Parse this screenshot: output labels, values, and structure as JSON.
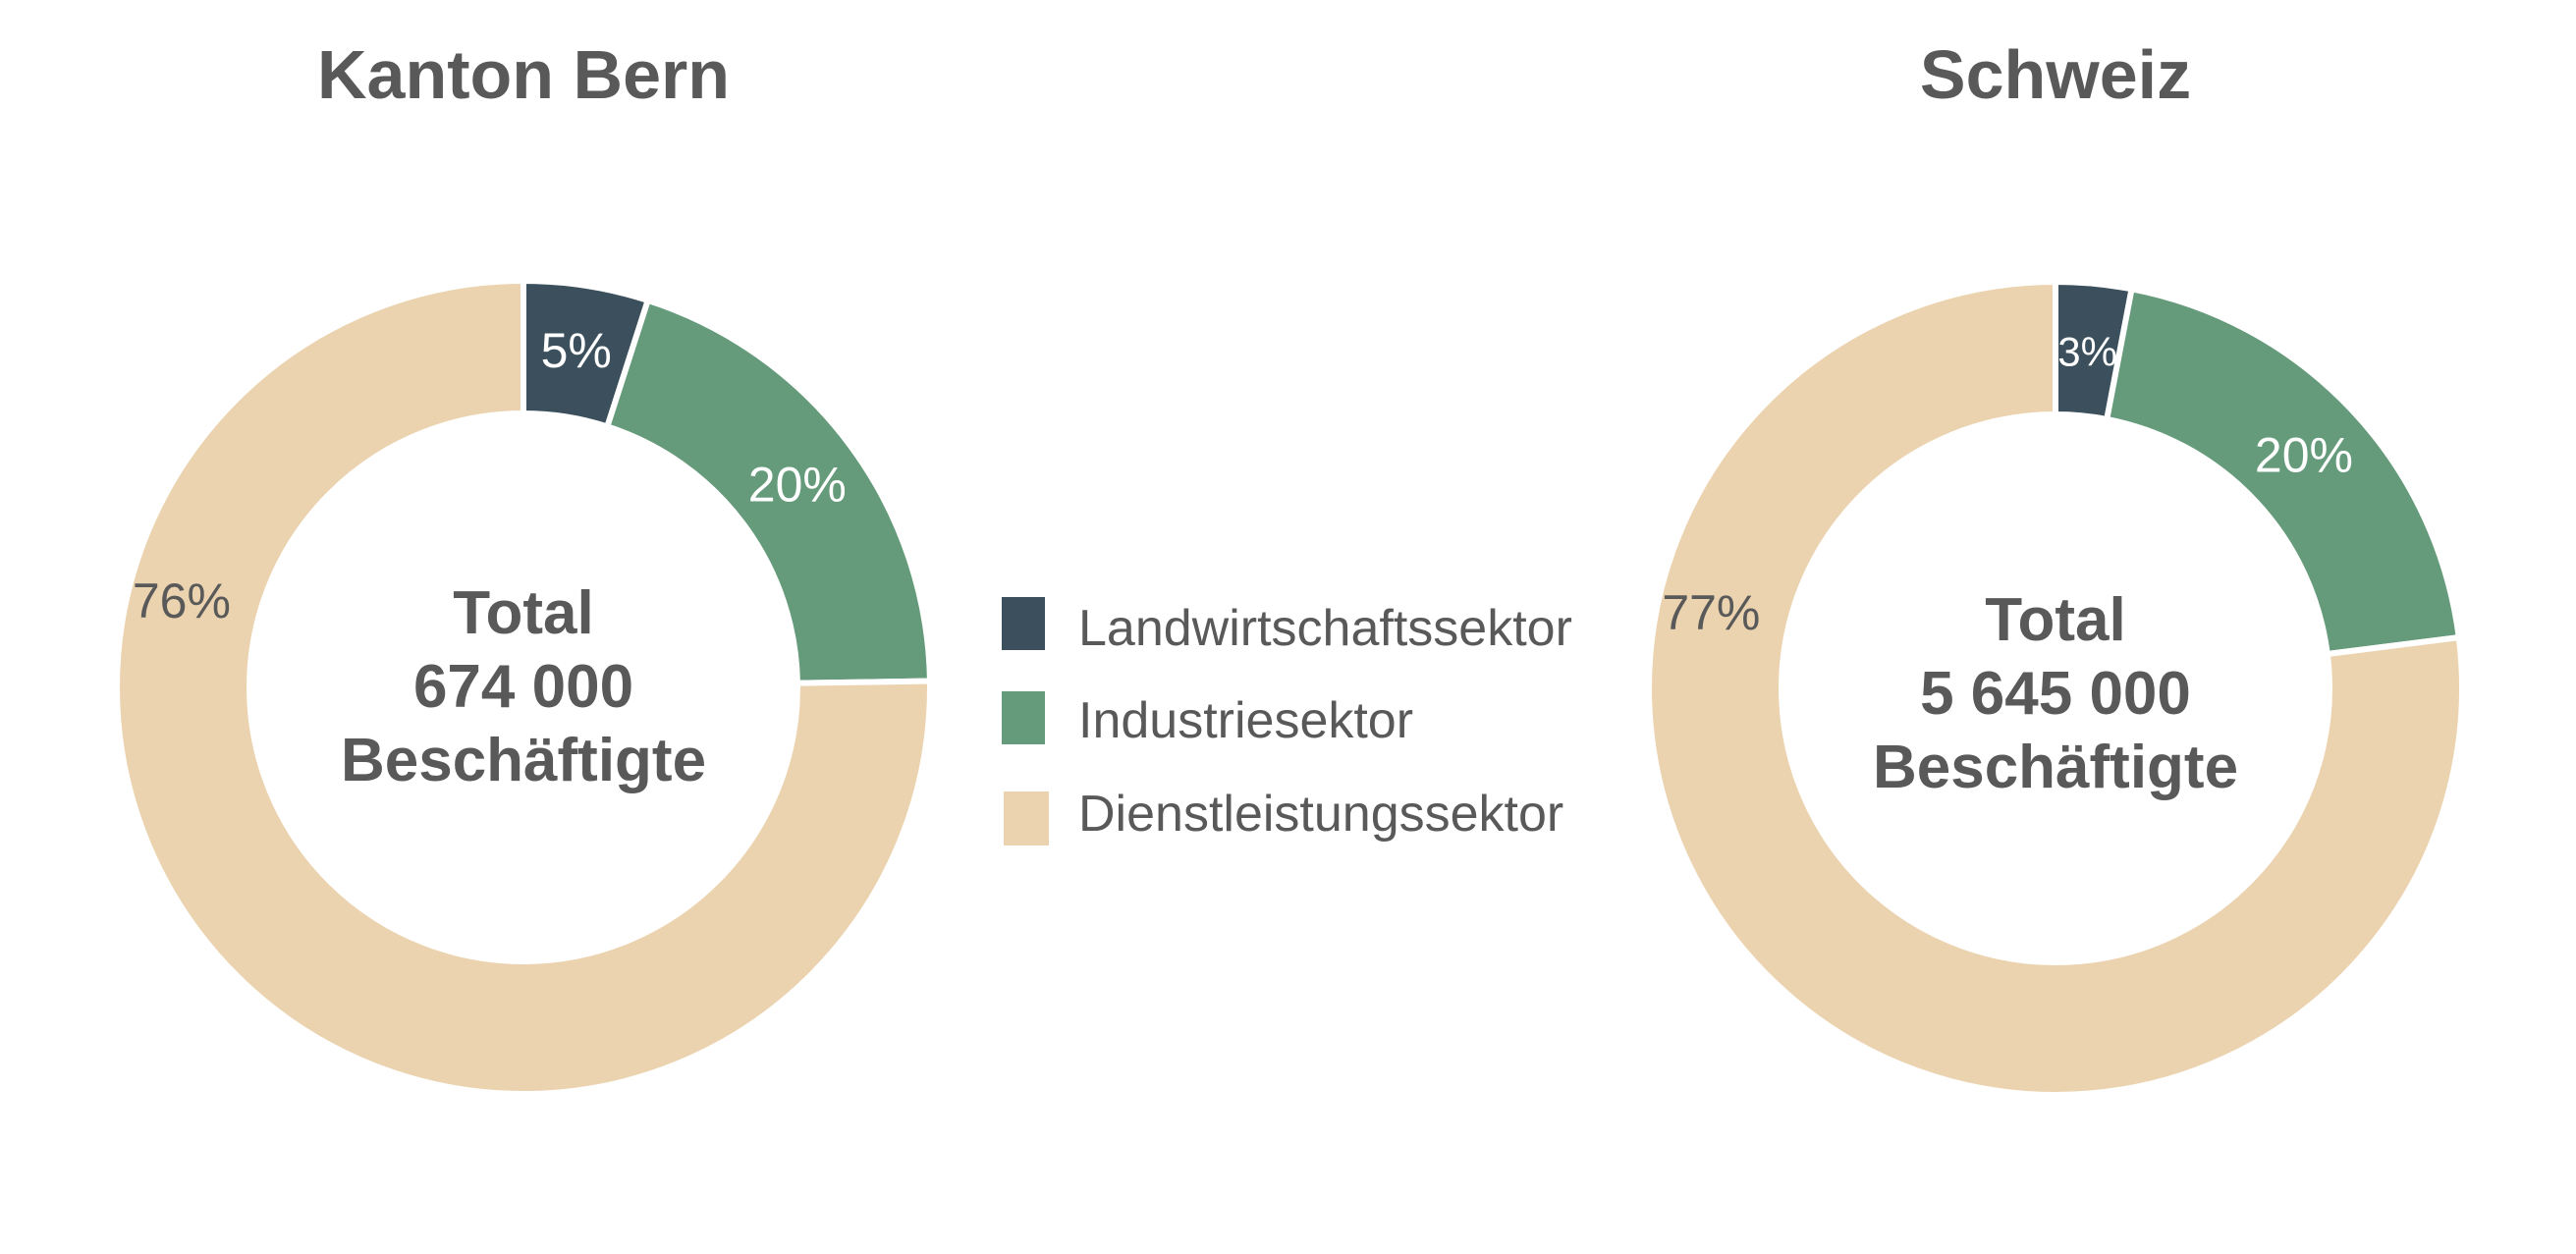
{
  "chart_data": [
    {
      "type": "pie",
      "title": "Kanton Bern",
      "center_text": [
        "Total",
        "674 000",
        "Beschäftigte"
      ],
      "categories": [
        "Landwirtschaftssektor",
        "Industriesektor",
        "Dienstleistungssektor"
      ],
      "values": [
        5,
        20,
        76
      ],
      "value_labels": [
        "5%",
        "20%",
        "76%"
      ]
    },
    {
      "type": "pie",
      "title": "Schweiz",
      "center_text": [
        "Total",
        "5 645 000",
        "Beschäftigte"
      ],
      "categories": [
        "Landwirtschaftssektor",
        "Industriesektor",
        "Dienstleistungssektor"
      ],
      "values": [
        3,
        20,
        77
      ],
      "value_labels": [
        "3%",
        "20%",
        "77%"
      ]
    }
  ],
  "legend": {
    "placement": "center",
    "items": [
      {
        "label": "Landwirtschaftssektor",
        "color": "#3b4f5c"
      },
      {
        "label": "Industriesektor",
        "color": "#659b7b"
      },
      {
        "label": "Dienstleistungssektor",
        "color": "#ebd3af"
      }
    ]
  },
  "colors": {
    "segments": [
      "#3b4f5c",
      "#659b7b",
      "#ebd3af"
    ],
    "label_on_dark": "#ffffff",
    "label_on_light": "#595959",
    "text": "#595959"
  }
}
